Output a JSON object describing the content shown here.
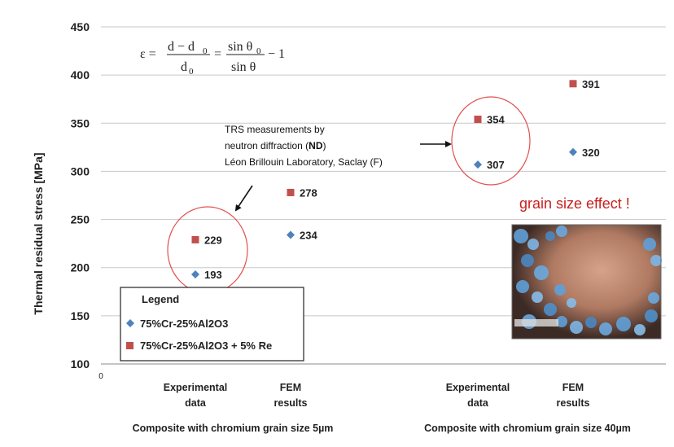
{
  "chart_data": {
    "type": "scatter",
    "ylabel": "Thermal residual stress [MPa]",
    "ylim": [
      100,
      450
    ],
    "y_ticks": [
      "100",
      "150",
      "200",
      "250",
      "300",
      "350",
      "400",
      "450"
    ],
    "x_origin_label": "0",
    "grid": true,
    "categories": [
      {
        "line1": "Experimental",
        "line2": "data"
      },
      {
        "line1": "FEM",
        "line2": "results"
      },
      {
        "line1": "Experimental",
        "line2": "data"
      },
      {
        "line1": "FEM",
        "line2": "results"
      }
    ],
    "groups": [
      "Composite with chromium grain size 5µm",
      "Composite with chromium grain size 40µm"
    ],
    "series": [
      {
        "name": "75%Cr-25%Al2O3",
        "color": "#4f81bd",
        "marker": "diamond",
        "values": [
          193,
          234,
          307,
          320
        ],
        "labels": [
          "193",
          "234",
          "307",
          "320"
        ]
      },
      {
        "name": "75%Cr-25%Al2O3 + 5% Re",
        "color": "#c0504d",
        "marker": "square",
        "values": [
          229,
          278,
          354,
          391
        ],
        "labels": [
          "229",
          "278",
          "354",
          "391"
        ]
      }
    ],
    "legend": {
      "title": "Legend",
      "position": "bottom-left"
    }
  },
  "annotations": {
    "equation": {
      "eps": "ε =",
      "num1": "d − d",
      "sub0": "0",
      "den1": "d",
      "eq2": "=",
      "num2": "sin θ",
      "den2": "sin θ",
      "tail": "− 1"
    },
    "note_lines": [
      "TRS measurements by",
      "neutron diffraction (",
      "ND",
      ")",
      "Léon Brillouin Laboratory, Saclay (F)"
    ],
    "grain_size_effect": "grain size effect !"
  },
  "image": {
    "description": "micrograph inset"
  }
}
